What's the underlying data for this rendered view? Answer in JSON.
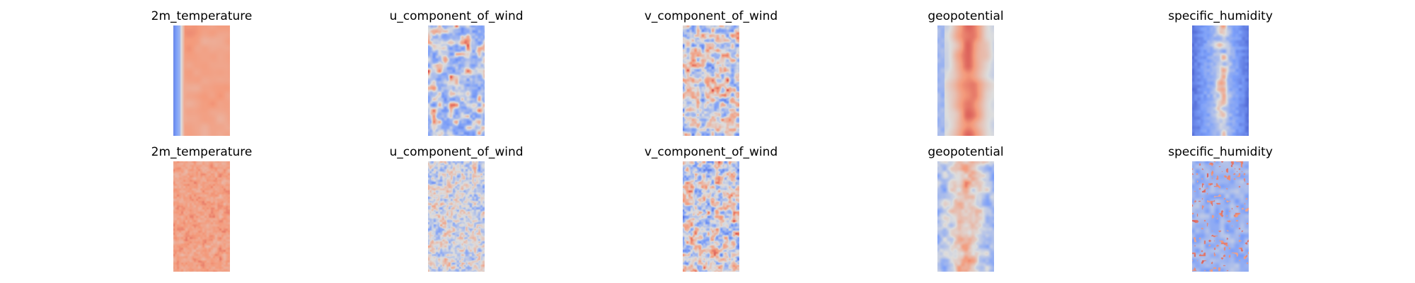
{
  "chart_data": [
    {
      "type": "heatmap",
      "title": "2m_temperature",
      "colormap": "coolwarm",
      "pattern": "warm interior, cold edges"
    },
    {
      "type": "heatmap",
      "title": "u_component_of_wind",
      "colormap": "coolwarm",
      "pattern": "mostly cool with scattered warm streaks"
    },
    {
      "type": "heatmap",
      "title": "v_component_of_wind",
      "colormap": "coolwarm",
      "pattern": "mixed noisy warm/cool"
    },
    {
      "type": "heatmap",
      "title": "geopotential",
      "colormap": "coolwarm",
      "pattern": "warm central band"
    },
    {
      "type": "heatmap",
      "title": "specific_humidity",
      "colormap": "coolwarm",
      "pattern": "cold edges, warm center streak"
    },
    {
      "type": "heatmap",
      "title": "2m_temperature",
      "colormap": "coolwarm",
      "pattern": "uniform warm with texture"
    },
    {
      "type": "heatmap",
      "title": "u_component_of_wind",
      "colormap": "coolwarm",
      "pattern": "light mixed"
    },
    {
      "type": "heatmap",
      "title": "v_component_of_wind",
      "colormap": "coolwarm",
      "pattern": "mixed noisy warm/cool"
    },
    {
      "type": "heatmap",
      "title": "geopotential",
      "colormap": "coolwarm",
      "pattern": "warm center, cool sides"
    },
    {
      "type": "heatmap",
      "title": "specific_humidity",
      "colormap": "coolwarm",
      "pattern": "light cool with warm specks"
    }
  ]
}
